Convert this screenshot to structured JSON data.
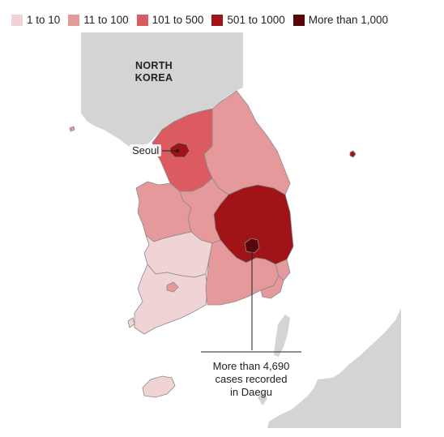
{
  "legend": [
    {
      "label": "1 to 10",
      "color": "#f0d3d4"
    },
    {
      "label": "11 to 100",
      "color": "#e6999b"
    },
    {
      "label": "101 to 500",
      "color": "#dc5b60"
    },
    {
      "label": "501 to 1000",
      "color": "#a01317"
    },
    {
      "label": "More than 1,000",
      "color": "#5a0608"
    }
  ],
  "labels": {
    "north_korea_line1": "NORTH",
    "north_korea_line2": "KOREA",
    "seoul": "Seoul",
    "daegu_line1": "More than 4,690",
    "daegu_line2": "cases recorded",
    "daegu_line3": "in Daegu"
  },
  "colors": {
    "land_neighbor": "#d4d4d4",
    "border": "#8a8a8a"
  },
  "map_data": {
    "regions": [
      {
        "name": "Seoul",
        "bin": "501 to 1000"
      },
      {
        "name": "Gyeonggi",
        "bin": "101 to 500"
      },
      {
        "name": "Gangwon",
        "bin": "11 to 100"
      },
      {
        "name": "North Chungcheong",
        "bin": "11 to 100"
      },
      {
        "name": "South Chungcheong",
        "bin": "11 to 100"
      },
      {
        "name": "North Gyeongsang",
        "bin": "501 to 1000"
      },
      {
        "name": "Daegu",
        "bin": "More than 1,000"
      },
      {
        "name": "South Gyeongsang",
        "bin": "11 to 100"
      },
      {
        "name": "Ulsan",
        "bin": "11 to 100"
      },
      {
        "name": "Busan",
        "bin": "11 to 100"
      },
      {
        "name": "North Jeolla",
        "bin": "1 to 10"
      },
      {
        "name": "South Jeolla",
        "bin": "1 to 10"
      },
      {
        "name": "Gwangju",
        "bin": "11 to 100"
      },
      {
        "name": "Jeju",
        "bin": "1 to 10"
      },
      {
        "name": "Ulleungdo",
        "bin": "501 to 1000"
      }
    ]
  }
}
